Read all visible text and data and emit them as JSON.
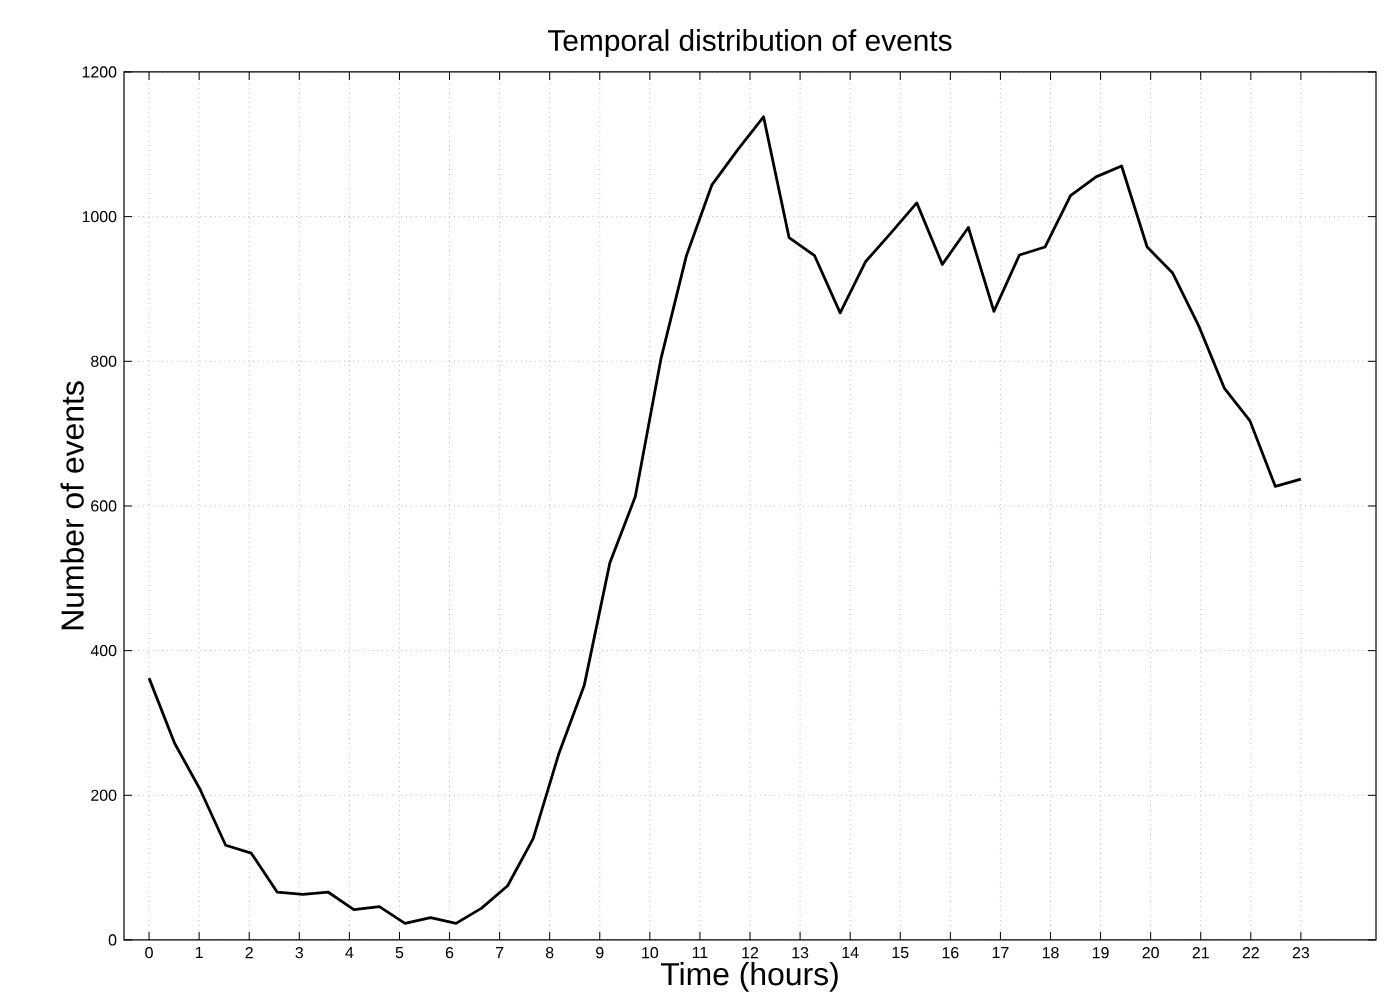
{
  "chart_data": {
    "type": "line",
    "title": "Temporal distribution of events",
    "xlabel": "Time (hours)",
    "ylabel": "Number of events",
    "x": [
      0,
      0.51,
      1.02,
      1.53,
      2.04,
      2.56,
      3.07,
      3.58,
      4.09,
      4.6,
      5.11,
      5.62,
      6.13,
      6.64,
      7.16,
      7.67,
      8.18,
      8.69,
      9.2,
      9.71,
      10.22,
      10.73,
      11.24,
      11.76,
      12.27,
      12.78,
      13.29,
      13.8,
      14.31,
      14.82,
      15.33,
      15.84,
      16.36,
      16.87,
      17.38,
      17.89,
      18.4,
      18.91,
      19.42,
      19.93,
      20.44,
      20.96,
      21.47,
      21.98,
      22.49,
      23.0
    ],
    "series": [
      {
        "color": "#000000",
        "values": [
          362,
          272,
          208,
          131,
          120,
          66,
          63,
          66,
          42,
          46,
          23,
          31,
          23,
          44,
          75,
          140,
          257,
          352,
          521,
          613,
          803,
          946,
          1044,
          1093,
          1138,
          971,
          946,
          867,
          938,
          978,
          1019,
          934,
          985,
          869,
          947,
          958,
          1029,
          1055,
          1070,
          958,
          922,
          849,
          763,
          718,
          627,
          637
        ]
      }
    ],
    "xlim": [
      -0.5,
      24.5
    ],
    "ylim": [
      0,
      1200
    ],
    "xticks": [
      0,
      1,
      2,
      3,
      4,
      5,
      6,
      7,
      8,
      9,
      10,
      11,
      12,
      13,
      14,
      15,
      16,
      17,
      18,
      19,
      20,
      21,
      22,
      23
    ],
    "yticks": [
      0,
      200,
      400,
      600,
      800,
      1000,
      1200
    ],
    "grid": true
  }
}
